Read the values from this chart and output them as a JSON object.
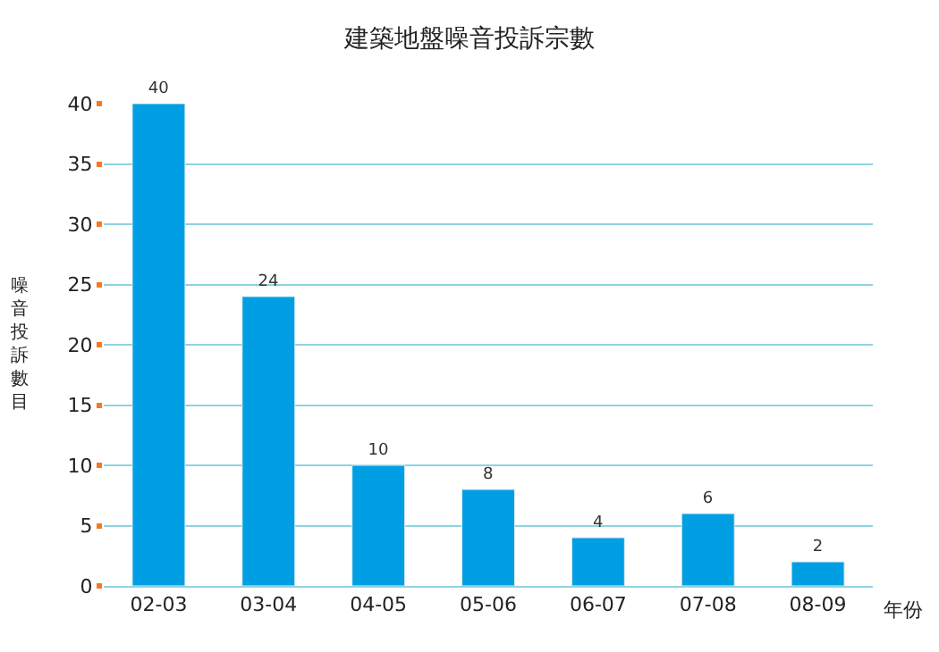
{
  "chart_data": {
    "type": "bar",
    "title": "建築地盤噪音投訴宗數",
    "xlabel": "年份",
    "ylabel": "噪音投訴數目",
    "categories": [
      "02-03",
      "03-04",
      "04-05",
      "05-06",
      "06-07",
      "07-08",
      "08-09"
    ],
    "values": [
      40,
      24,
      10,
      8,
      4,
      6,
      2
    ],
    "color": "#009fe3",
    "ylim": [
      0,
      40
    ],
    "yticks": [
      0,
      5,
      10,
      15,
      20,
      25,
      30,
      35,
      40
    ],
    "grid": "y",
    "data_labels": true
  }
}
